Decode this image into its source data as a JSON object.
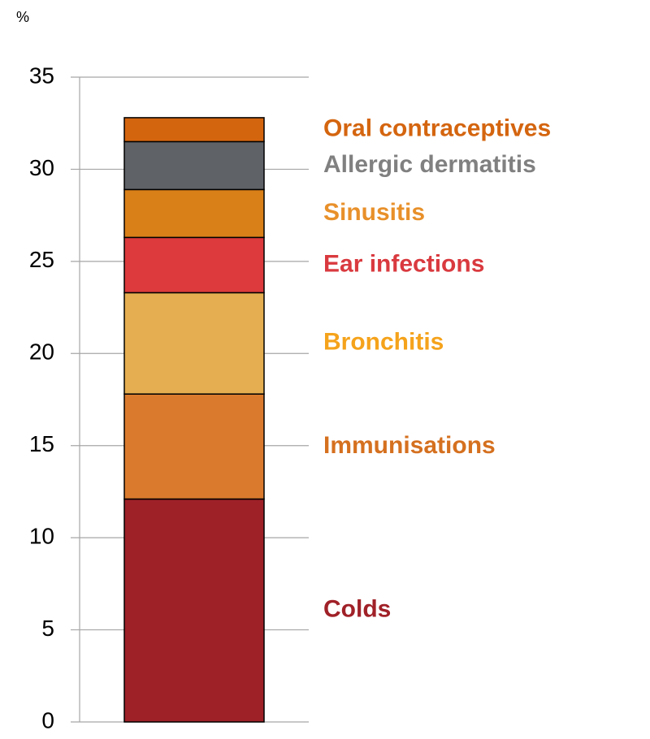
{
  "chart_data": {
    "type": "stacked_bar",
    "y_label": "%",
    "categories": [
      null
    ],
    "series": [
      {
        "name": "Colds",
        "color": "#9e2128",
        "label_color": "#a02128",
        "values": [
          12.1
        ]
      },
      {
        "name": "Immunisations",
        "color": "#da7a2d",
        "label_color": "#d5701f",
        "values": [
          5.7
        ]
      },
      {
        "name": "Bronchitis",
        "color": "#e5ae50",
        "label_color": "#f5a31c",
        "values": [
          5.5
        ]
      },
      {
        "name": "Ear infections",
        "color": "#dc3a3c",
        "label_color": "#d93a3f",
        "values": [
          3.0
        ]
      },
      {
        "name": "Sinusitis",
        "color": "#d98018",
        "label_color": "#e8902a",
        "values": [
          2.6
        ]
      },
      {
        "name": "Allergic dermatitis",
        "color": "#5f6368",
        "label_color": "#808080",
        "values": [
          2.6
        ]
      },
      {
        "name": "Oral contraceptives",
        "color": "#d4650f",
        "label_color": "#d4650f",
        "values": [
          1.3
        ]
      }
    ],
    "ylim": [
      0,
      35
    ],
    "yticks": [
      0,
      5,
      10,
      15,
      20,
      25,
      30,
      35
    ],
    "grid": true
  }
}
